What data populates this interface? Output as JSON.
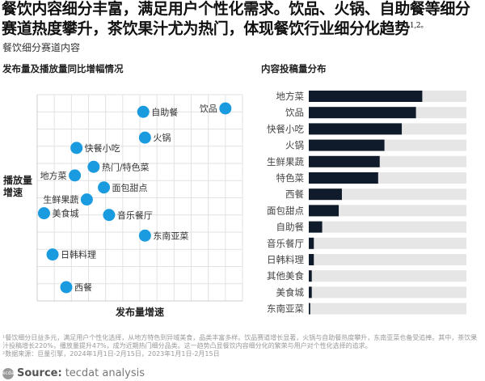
{
  "header": {
    "title": "餐饮内容细分丰富，满足用户个性化需求。饮品、火锅、自助餐等细分赛道热度攀升，茶饮果汁尤为热门，体现餐饮行业细分化趋势",
    "title_sup": "1,2。",
    "subtitle": "餐饮细分赛道内容"
  },
  "chart_data": [
    {
      "type": "scatter",
      "title": "发布量及播放量同比增幅情况",
      "xlabel": "发布量增速",
      "ylabel": "播放量增速",
      "grid": true,
      "xlim": [
        0,
        12
      ],
      "ylim": [
        0,
        12
      ],
      "marker_color": "#1a9be0",
      "points": [
        {
          "label": "饮品",
          "x": 11.0,
          "y": 11.2,
          "label_side": "left"
        },
        {
          "label": "自助餐",
          "x": 6.2,
          "y": 11.0
        },
        {
          "label": "火锅",
          "x": 6.3,
          "y": 9.5
        },
        {
          "label": "快餐小吃",
          "x": 2.3,
          "y": 8.9
        },
        {
          "label": "热门/特色菜",
          "x": 3.3,
          "y": 7.8
        },
        {
          "label": "地方菜",
          "x": 2.2,
          "y": 7.3,
          "label_side": "left"
        },
        {
          "label": "面包甜点",
          "x": 3.9,
          "y": 6.6
        },
        {
          "label": "生鲜果蔬",
          "x": 2.9,
          "y": 5.9,
          "label_side": "left"
        },
        {
          "label": "美食城",
          "x": 0.4,
          "y": 5.1
        },
        {
          "label": "音乐餐厅",
          "x": 4.2,
          "y": 5.0
        },
        {
          "label": "东南亚菜",
          "x": 6.3,
          "y": 3.8
        },
        {
          "label": "日韩料理",
          "x": 0.9,
          "y": 2.7
        },
        {
          "label": "西餐",
          "x": 1.7,
          "y": 0.8
        }
      ]
    },
    {
      "type": "bar",
      "orientation": "horizontal",
      "title": "内容投稿量分布",
      "bar_color": "#0f1a2a",
      "track_color": "#e6e6e6",
      "xlim": [
        0,
        100
      ],
      "categories": [
        "地方菜",
        "饮品",
        "快餐小吃",
        "火锅",
        "生鲜果蔬",
        "特色菜",
        "西餐",
        "面包甜点",
        "自助餐",
        "音乐餐厅",
        "日韩料理",
        "其他美食",
        "美食城",
        "东南亚菜"
      ],
      "values": [
        72,
        68,
        59,
        48,
        45,
        44,
        21,
        19,
        8.5,
        3.2,
        3.2,
        1.9,
        1.9,
        0.9
      ]
    }
  ],
  "footnotes": {
    "note1": "¹餐饮细分日益多元，满足用户个性化选择，从地方特色到异域美食，品类丰富多样。饮品赛道增长显著，火锅与自助餐热度攀升，东南亚菜也备受追捧。其中，茶饮果汁投稿增长220%，播放量提升47%，成为近期热门细分品类。这一趋势凸显餐饮内容细分化的繁荣与用户对个性化选择的追求。",
    "note2": "²数据来源：巨量引擎，2024年1月1日-2月15日，2023年1月1日-2月15日"
  },
  "source": {
    "logo": "tecdat",
    "label": "Source:",
    "text": "tecdat analysis"
  }
}
